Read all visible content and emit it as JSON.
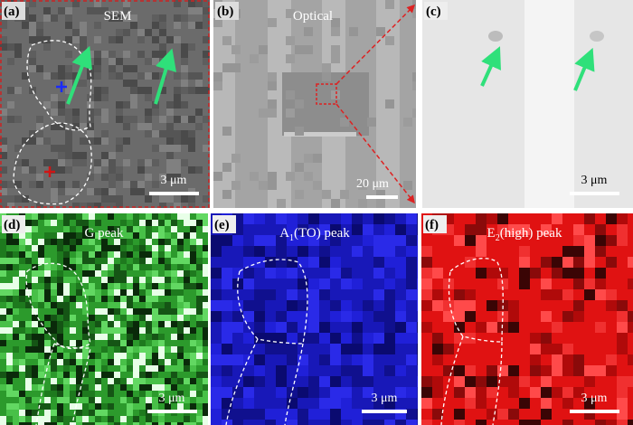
{
  "panels": [
    {
      "label": "(a)",
      "title": "SEM",
      "scale_bar": "3 μm"
    },
    {
      "label": "(b)",
      "title": "Optical",
      "scale_bar": "20 μm"
    },
    {
      "label": "(c)",
      "scale_bar": "3 μm"
    },
    {
      "label": "(d)",
      "title": "G peak",
      "scale_bar": "3 μm"
    },
    {
      "label": "(e)",
      "title": {
        "main": "A",
        "sub": "1",
        "rest": "(TO) peak"
      },
      "scale_bar": "3 μm"
    },
    {
      "label": "(f)",
      "title": {
        "main": "E",
        "sub": "2",
        "rest": "(high) peak"
      },
      "scale_bar": "3 μm"
    }
  ]
}
